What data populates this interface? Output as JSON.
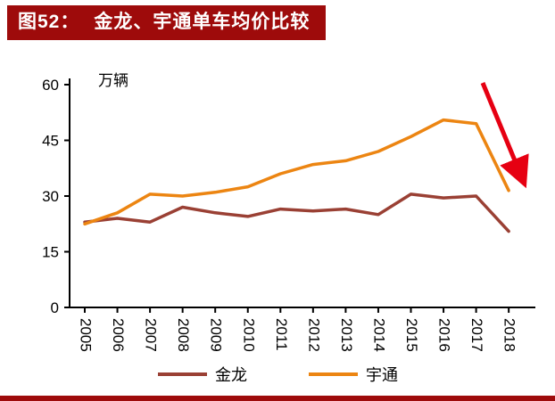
{
  "header": {
    "prefix": "图52：",
    "title": "金龙、宇通单车均价比较"
  },
  "colors": {
    "header_bg": "#9E0B0B",
    "footer_bar": "#9E0B0B",
    "axis": "#000000"
  },
  "chart_data": {
    "type": "line",
    "title": "金龙、宇通单车均价比较",
    "unit_label": "万辆",
    "categories": [
      "2005",
      "2006",
      "2007",
      "2008",
      "2009",
      "2010",
      "2011",
      "2012",
      "2013",
      "2014",
      "2015",
      "2016",
      "2017",
      "2018"
    ],
    "series": [
      {
        "name": "金龙",
        "color": "#9A4034",
        "values": [
          23,
          24,
          23,
          27,
          25.5,
          24.5,
          26.5,
          26,
          26.5,
          25,
          30.5,
          29.5,
          30,
          20.5
        ]
      },
      {
        "name": "宇通",
        "color": "#EC8512",
        "values": [
          22.5,
          25.5,
          30.5,
          30,
          31,
          32.5,
          36,
          38.5,
          39.5,
          42,
          46,
          50.5,
          49.5,
          31.5
        ]
      }
    ],
    "ylim": [
      0,
      60
    ],
    "yticks": [
      0,
      15,
      30,
      45,
      60
    ],
    "grid": false,
    "legend_position": "bottom",
    "annotation": "decline-arrow",
    "annotation_color": "#E60012"
  }
}
